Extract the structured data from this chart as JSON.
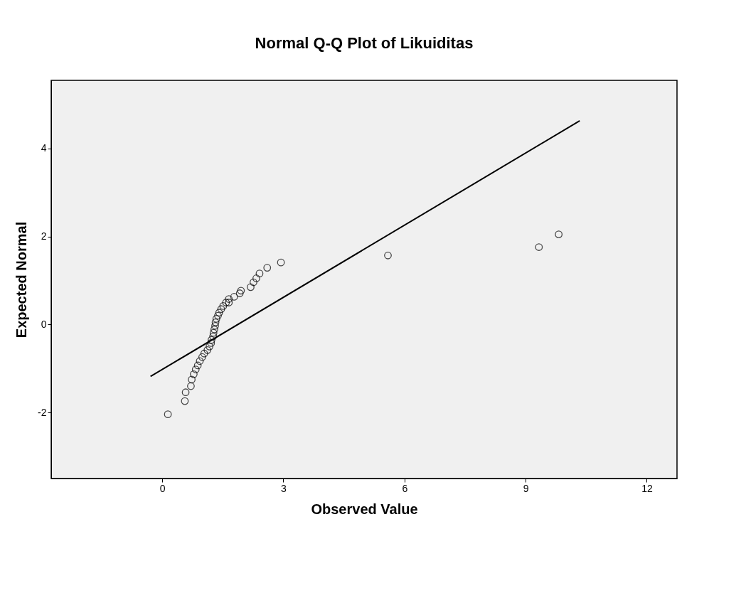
{
  "chart_data": {
    "type": "scatter",
    "title": "Normal Q-Q Plot of Likuiditas",
    "xlabel": "Observed Value",
    "ylabel": "Expected Normal",
    "xlim": [
      -2.75,
      12.75
    ],
    "ylim": [
      -3.5,
      5.55
    ],
    "xticks": [
      0,
      3,
      6,
      9,
      12
    ],
    "yticks": [
      -2,
      0,
      2,
      4
    ],
    "grid": false,
    "series": [
      {
        "marker": "circle",
        "color": "#000000",
        "x": [
          0.14,
          0.56,
          0.58,
          0.71,
          0.73,
          0.78,
          0.83,
          0.88,
          0.93,
          0.99,
          1.04,
          1.12,
          1.17,
          1.21,
          1.22,
          1.26,
          1.27,
          1.29,
          1.31,
          1.32,
          1.34,
          1.38,
          1.41,
          1.46,
          1.51,
          1.58,
          1.65,
          1.65,
          1.78,
          1.92,
          1.95,
          2.19,
          2.26,
          2.33,
          2.41,
          2.6,
          2.94,
          5.59,
          9.33,
          9.82
        ],
        "values": [
          -2.04,
          -1.74,
          -1.54,
          -1.4,
          -1.25,
          -1.13,
          -1.02,
          -0.93,
          -0.83,
          -0.74,
          -0.66,
          -0.58,
          -0.5,
          -0.42,
          -0.35,
          -0.27,
          -0.19,
          -0.11,
          -0.03,
          0.05,
          0.13,
          0.2,
          0.27,
          0.35,
          0.42,
          0.5,
          0.5,
          0.58,
          0.63,
          0.71,
          0.77,
          0.85,
          0.96,
          1.05,
          1.16,
          1.29,
          1.41,
          1.57,
          1.76,
          2.05
        ]
      },
      {
        "type": "line",
        "color": "#000000",
        "x": [
          -0.29,
          10.34
        ],
        "values": [
          -1.18,
          4.63
        ]
      }
    ]
  }
}
